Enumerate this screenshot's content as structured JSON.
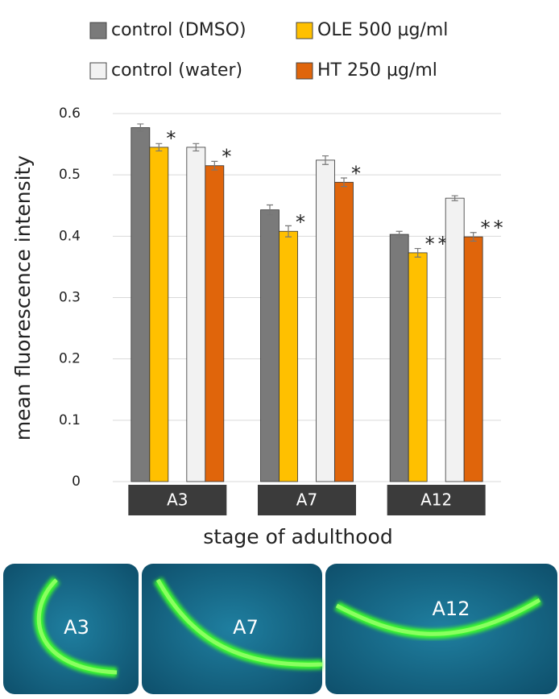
{
  "chart_data": {
    "type": "bar",
    "y_label": "mean fluorescence intensity",
    "x_label": "stage of adulthood",
    "categories": [
      "A3",
      "A7",
      "A12"
    ],
    "series": [
      {
        "name": "control (DMSO)",
        "color": "#7a7a7a",
        "values": [
          0.577,
          0.443,
          0.403
        ],
        "errors": [
          0.006,
          0.008,
          0.005
        ]
      },
      {
        "name": "OLE 500 µg/ml",
        "color": "#ffc000",
        "values": [
          0.545,
          0.408,
          0.373
        ],
        "errors": [
          0.006,
          0.009,
          0.007
        ],
        "annotations": [
          "*",
          "*",
          "**"
        ]
      },
      {
        "name": "control (water)",
        "color": "#f2f2f2",
        "values": [
          0.545,
          0.524,
          0.462
        ],
        "errors": [
          0.006,
          0.007,
          0.004
        ]
      },
      {
        "name": "HT 250 µg/ml",
        "color": "#e0650b",
        "values": [
          0.515,
          0.488,
          0.399
        ],
        "errors": [
          0.007,
          0.007,
          0.007
        ],
        "annotations": [
          "*",
          "*",
          "**"
        ]
      }
    ],
    "ylim": [
      0,
      0.6
    ],
    "yticks": [
      0,
      0.1,
      0.2,
      0.3,
      0.4,
      0.5,
      0.6
    ],
    "grid": true
  },
  "images": [
    {
      "label": "A3"
    },
    {
      "label": "A7"
    },
    {
      "label": "A12"
    }
  ]
}
